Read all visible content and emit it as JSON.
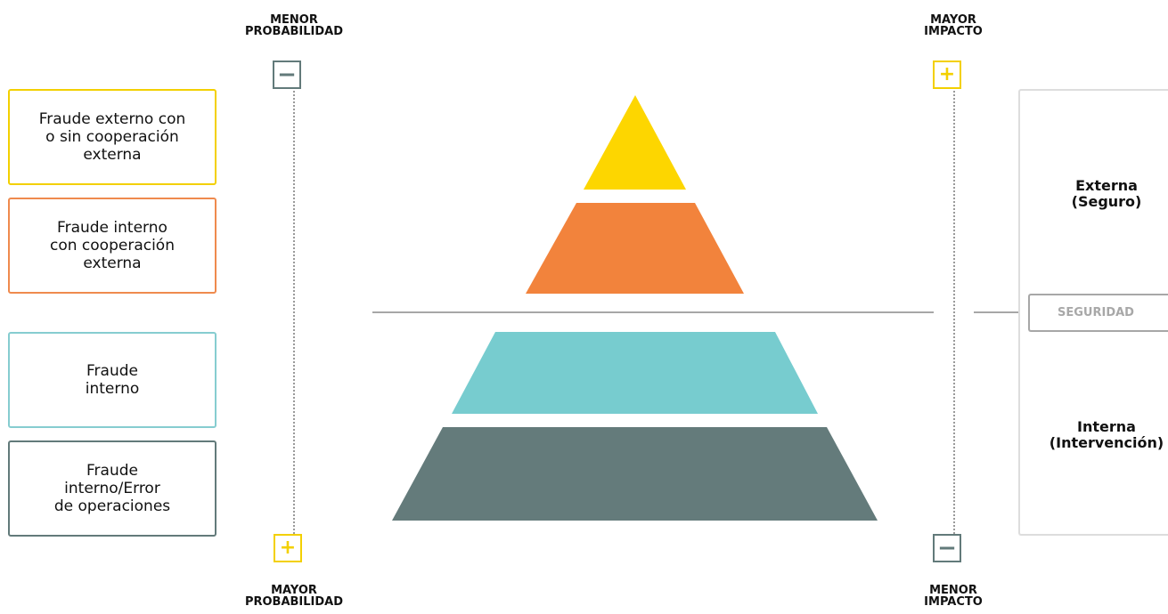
{
  "left_axis": {
    "top_title": "MENOR\nPROBABILIDAD",
    "top_symbol": "−",
    "bottom_symbol": "+",
    "bottom_title": "MAYOR\nPROBABILIDAD"
  },
  "right_axis": {
    "top_title": "MAYOR\nIMPACTO",
    "top_symbol": "+",
    "bottom_symbol": "−",
    "bottom_title": "MENOR\nIMPACTO"
  },
  "categories": [
    {
      "label": "Fraude externo con\no sin cooperación\nexterna",
      "color": "#f3d000"
    },
    {
      "label": "Fraude interno\ncon cooperación\nexterna",
      "color": "#ef8a4e"
    },
    {
      "label": "Fraude\ninterno",
      "color": "#86cdd0"
    },
    {
      "label": "Fraude\ninterno/Error\nde operaciones",
      "color": "#627a7a"
    }
  ],
  "pyramid_colors": [
    "#fdd600",
    "#f2833c",
    "#77cccf",
    "#647b7b"
  ],
  "zones": {
    "external": "Externa\n(Seguro)",
    "separator": "SEGURIDAD",
    "internal": "Interna\n(Intervención)"
  },
  "colors": {
    "separator_line": "#a7a7a7",
    "panel_border": "#dddddd",
    "separator_text": "#a8a8a8"
  }
}
